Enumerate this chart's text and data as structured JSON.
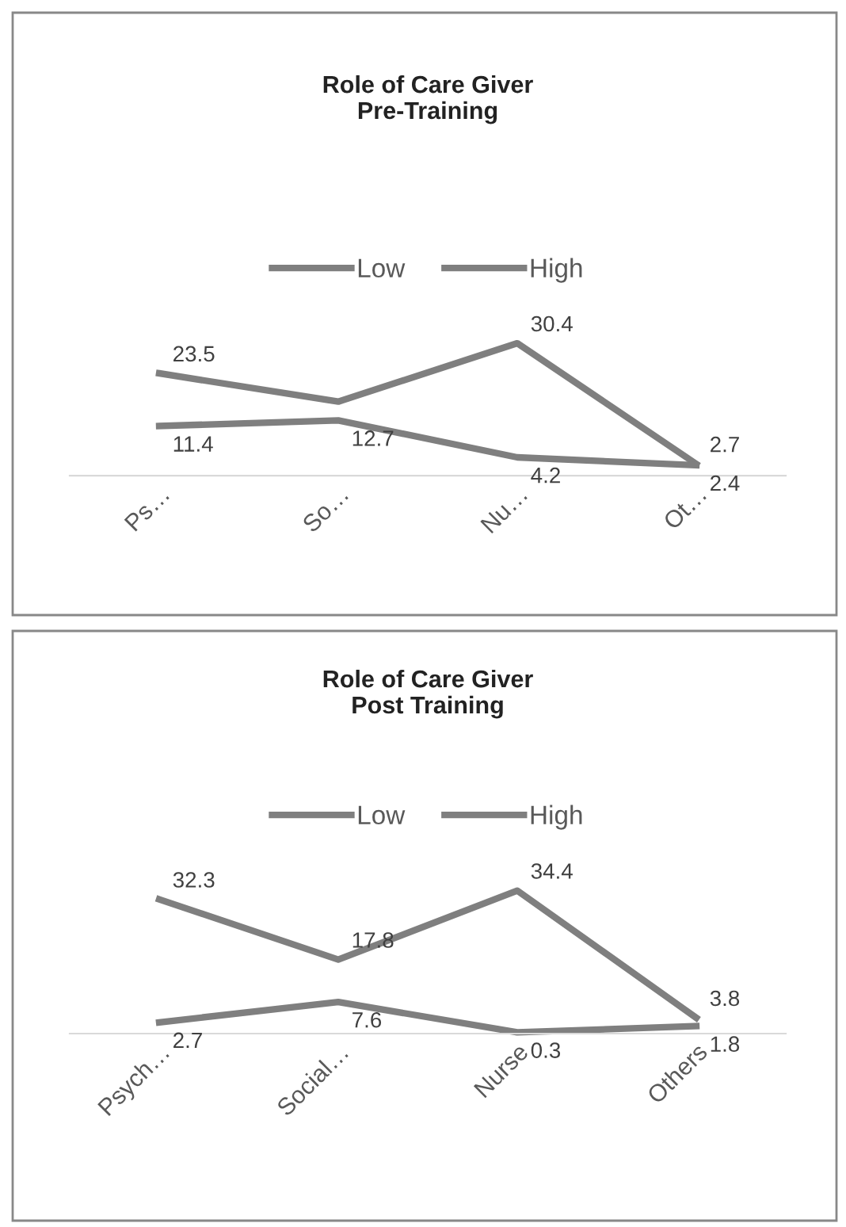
{
  "chart_data": [
    {
      "type": "line",
      "title": "Role of Care Giver\nPre-Training",
      "categories": [
        "Ps…",
        "So…",
        "Nu…",
        "Ot…"
      ],
      "series": [
        {
          "name": "Low",
          "color": "#7f7f7f",
          "values": [
            23.5,
            17,
            30.4,
            2.7
          ],
          "value_labels": [
            "23.5",
            null,
            "30.4",
            "2.7"
          ]
        },
        {
          "name": "High",
          "color": "#7f7f7f",
          "values": [
            11.4,
            12.7,
            4.2,
            2.4
          ],
          "value_labels": [
            "11.4",
            "12.7",
            "4.2",
            "2.4"
          ]
        }
      ],
      "tick_labels": "x",
      "legend": "top",
      "grid": false,
      "marker": "none",
      "line_style": "solid"
    },
    {
      "type": "line",
      "title": "Role of Care Giver\nPost Training",
      "categories": [
        "Psych…",
        "Social…",
        "Nurse",
        "Others"
      ],
      "series": [
        {
          "name": "Low",
          "color": "#7f7f7f",
          "values": [
            32.3,
            17.8,
            34.4,
            3.8
          ],
          "value_labels": [
            "32.3",
            "17.8",
            "34.4",
            "3.8"
          ]
        },
        {
          "name": "High",
          "color": "#7f7f7f",
          "values": [
            2.7,
            7.6,
            0.3,
            1.8
          ],
          "value_labels": [
            "2.7",
            "7.6",
            "0.3",
            "1.8"
          ]
        }
      ],
      "tick_labels": "x",
      "legend": "top",
      "grid": false,
      "marker": "none",
      "line_style": "solid"
    }
  ]
}
